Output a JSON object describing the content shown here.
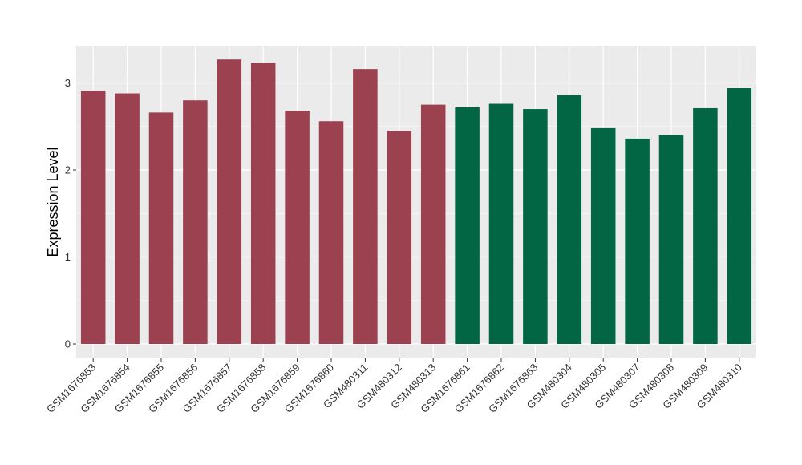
{
  "chart_data": {
    "type": "bar",
    "ylabel": "Expression Level",
    "xlabel": "",
    "ylim": [
      0,
      3.4
    ],
    "yticks": [
      0,
      1,
      2,
      3
    ],
    "grid": true,
    "panel_background": "#ebebeb",
    "grid_color": "#ffffff",
    "categories": [
      "GSM1676853",
      "GSM1676854",
      "GSM1676855",
      "GSM1676856",
      "GSM1676857",
      "GSM1676858",
      "GSM1676859",
      "GSM1676860",
      "GSM480311",
      "GSM480312",
      "GSM480313",
      "GSM1676861",
      "GSM1676862",
      "GSM1676863",
      "GSM480304",
      "GSM480305",
      "GSM480307",
      "GSM480308",
      "GSM480309",
      "GSM480310"
    ],
    "values": [
      2.91,
      2.88,
      2.66,
      2.8,
      3.27,
      3.23,
      2.68,
      2.56,
      3.16,
      2.45,
      2.75,
      2.72,
      2.76,
      2.7,
      2.86,
      2.48,
      2.36,
      2.4,
      2.71,
      2.94
    ],
    "groups": [
      0,
      0,
      0,
      0,
      0,
      0,
      0,
      0,
      0,
      0,
      0,
      1,
      1,
      1,
      1,
      1,
      1,
      1,
      1,
      1
    ],
    "group_colors": [
      "#9b4150",
      "#026645"
    ]
  }
}
